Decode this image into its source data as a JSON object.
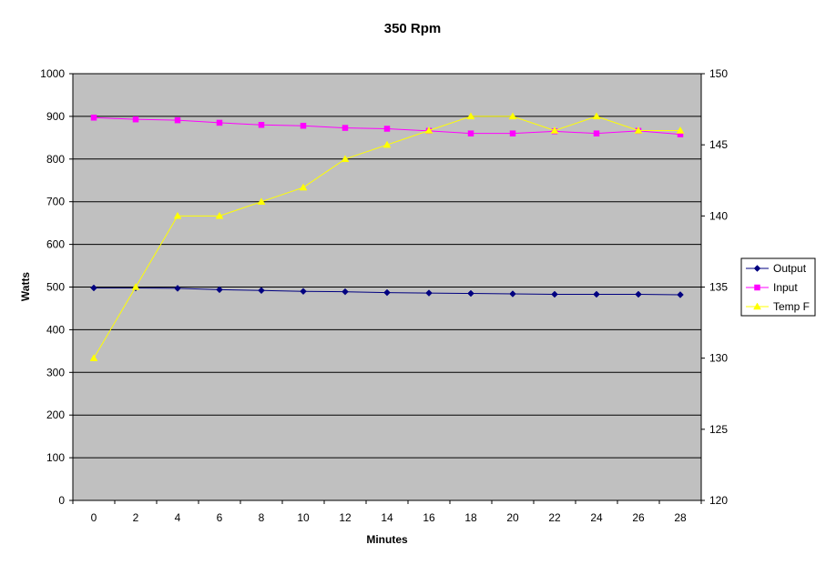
{
  "chart_data": {
    "type": "line",
    "title": "350 Rpm",
    "xlabel": "Minutes",
    "ylabel": "Watts",
    "y2label": "",
    "categories": [
      "0",
      "2",
      "4",
      "6",
      "8",
      "10",
      "12",
      "14",
      "16",
      "18",
      "20",
      "22",
      "24",
      "26",
      "28"
    ],
    "ylim": [
      0,
      1000
    ],
    "yticks": [
      0,
      100,
      200,
      300,
      400,
      500,
      600,
      700,
      800,
      900,
      1000
    ],
    "y2lim": [
      120,
      150
    ],
    "y2ticks": [
      120,
      125,
      130,
      135,
      140,
      145,
      150
    ],
    "grid": true,
    "plot_background": "#c0c0c0",
    "legend_position": "right",
    "series": [
      {
        "name": "Output",
        "axis": "left",
        "color": "#000080",
        "marker": "diamond",
        "values": [
          498,
          498,
          497,
          494,
          492,
          490,
          489,
          487,
          486,
          485,
          484,
          483,
          483,
          483,
          482
        ]
      },
      {
        "name": "Input",
        "axis": "left",
        "color": "#ff00ff",
        "marker": "square",
        "values": [
          897,
          893,
          891,
          885,
          880,
          878,
          873,
          871,
          866,
          860,
          860,
          865,
          860,
          866,
          858
        ]
      },
      {
        "name": "Temp F",
        "axis": "right",
        "color": "#ffff00",
        "marker": "triangle",
        "values": [
          130,
          135,
          140,
          140,
          141,
          142,
          144,
          145,
          146,
          147,
          147,
          146,
          147,
          146,
          146
        ]
      }
    ]
  }
}
